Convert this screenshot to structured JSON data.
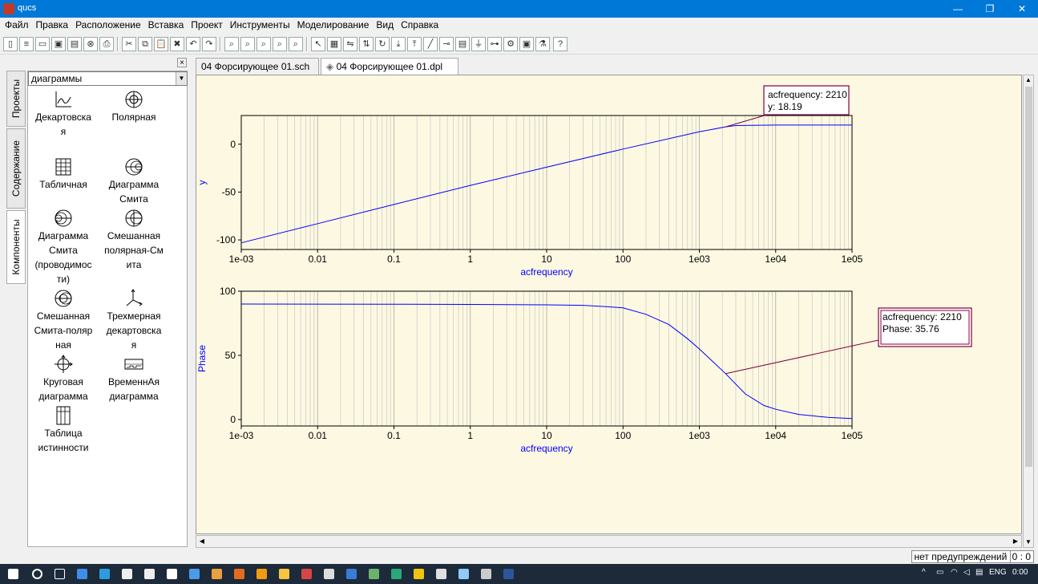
{
  "window": {
    "title": "qucs",
    "controls": [
      "—",
      "❐",
      "✕"
    ]
  },
  "menu": [
    "Файл",
    "Правка",
    "Расположение",
    "Вставка",
    "Проект",
    "Инструменты",
    "Моделирование",
    "Вид",
    "Справка"
  ],
  "toolbar_icons": [
    "new-icon",
    "new-text-icon",
    "open-icon",
    "save-icon",
    "save-all-icon",
    "close-icon",
    "print-icon",
    "cut-icon",
    "copy-icon",
    "paste-icon",
    "delete-icon",
    "undo-icon",
    "redo-icon",
    "zoom-fit-icon",
    "zoom-1-1-icon",
    "zoom-in-icon",
    "zoom-out-icon",
    "zoom-select-icon",
    "select-icon",
    "edit-properties-icon",
    "mirror-x-icon",
    "mirror-y-icon",
    "rotate-icon",
    "move-down-icon",
    "move-up-icon",
    "wire-icon",
    "label-icon",
    "equation-icon",
    "ground-icon",
    "port-icon",
    "simulate-icon",
    "display-results-icon",
    "matlab-icon",
    "help-icon"
  ],
  "left_panel": {
    "tabs": [
      "Проекты",
      "Содержание",
      "Компоненты"
    ],
    "active_tab": "Компоненты",
    "category": "диаграммы",
    "components": [
      {
        "lines": [
          "Декартовска",
          "я"
        ],
        "icon": "cartesian-icon"
      },
      {
        "lines": [
          "Полярная"
        ],
        "icon": "polar-icon"
      },
      {
        "lines": [
          "Табличная"
        ],
        "icon": "tabular-icon"
      },
      {
        "lines": [
          "Диаграмма",
          "Смита"
        ],
        "icon": "smith-icon"
      },
      {
        "lines": [
          "Диаграмма",
          "Смита",
          "(проводимос",
          "ти)"
        ],
        "icon": "smith-admittance-icon"
      },
      {
        "lines": [
          "Смешанная",
          "полярная-См",
          "ита"
        ],
        "icon": "polar-smith-icon"
      },
      {
        "lines": [
          "Смешанная",
          "Смита-поляр",
          "ная"
        ],
        "icon": "smith-polar-icon"
      },
      {
        "lines": [
          "Трехмерная",
          "декартовска",
          "я"
        ],
        "icon": "3d-cartesian-icon"
      },
      {
        "lines": [
          "Круговая",
          "диаграмма"
        ],
        "icon": "locus-curve-icon"
      },
      {
        "lines": [
          "ВременнАя",
          "диаграмма"
        ],
        "icon": "timing-diagram-icon"
      },
      {
        "lines": [
          "Таблица",
          "истинности"
        ],
        "icon": "truth-table-icon"
      }
    ]
  },
  "doc_tabs": [
    {
      "label": "04 Форсирующее 01.sch",
      "active": false
    },
    {
      "label": "04 Форсирующее 01.dpl",
      "active": true
    }
  ],
  "status": {
    "warnings": "нет предупреждений",
    "position": "0 : 0"
  },
  "taskbar": {
    "lang": "ENG",
    "time": "0:00"
  },
  "chart_data": [
    {
      "type": "line",
      "x_scale": "log",
      "xlim": [
        0.001,
        100000
      ],
      "ylim": [
        -110,
        30
      ],
      "xlabel": "acfrequency",
      "ylabel": "y",
      "x_ticks": [
        "1e-03",
        "0.01",
        "0.1",
        "1",
        "10",
        "100",
        "1e03",
        "1e04",
        "1e05"
      ],
      "y_ticks": [
        "0",
        "-50",
        "-100"
      ],
      "y_tick_values": [
        0,
        -50,
        -100
      ],
      "grid": true,
      "series": [
        {
          "color": "#0000ff",
          "x": [
            0.001,
            0.01,
            0.1,
            1,
            10,
            100,
            1000,
            2210,
            3000,
            10000,
            100000
          ],
          "y": [
            -103,
            -83,
            -63,
            -43,
            -24,
            -5,
            13,
            18.19,
            19.5,
            20,
            20
          ]
        }
      ],
      "marker": {
        "x": 2210,
        "y": 18.19,
        "lines": [
          "acfrequency: 2210",
          "y: 18.19"
        ]
      }
    },
    {
      "type": "line",
      "x_scale": "log",
      "xlim": [
        0.001,
        100000
      ],
      "ylim": [
        -5,
        100
      ],
      "xlabel": "acfrequency",
      "ylabel": "Phase",
      "x_ticks": [
        "1e-03",
        "0.01",
        "0.1",
        "1",
        "10",
        "100",
        "1e03",
        "1e04",
        "1e05"
      ],
      "y_ticks": [
        "100",
        "50",
        "0"
      ],
      "y_tick_values": [
        100,
        50,
        0
      ],
      "grid": true,
      "series": [
        {
          "color": "#0000ff",
          "x": [
            0.001,
            0.1,
            1,
            10,
            30,
            60,
            100,
            200,
            400,
            700,
            1000,
            2210,
            4000,
            7000,
            10000,
            20000,
            50000,
            100000
          ],
          "y": [
            90,
            89.9,
            89.7,
            89.4,
            89,
            88,
            87,
            82,
            74,
            63,
            55,
            35.76,
            20,
            11,
            8,
            4,
            1.6,
            0.8
          ]
        }
      ],
      "marker": {
        "x": 2210,
        "y": 35.76,
        "lines": [
          "acfrequency: 2210",
          "Phase: 35.76"
        ]
      }
    }
  ]
}
